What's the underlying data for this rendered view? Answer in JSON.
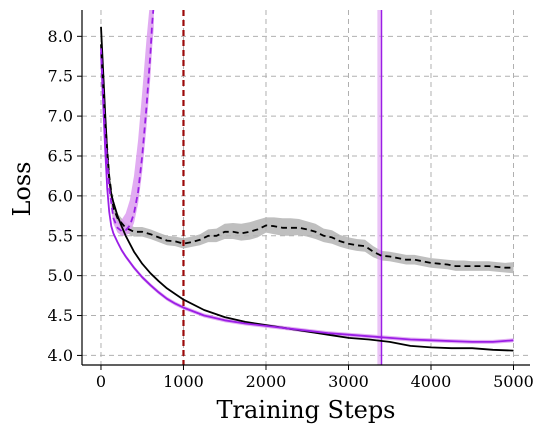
{
  "chart_data": {
    "type": "line",
    "title": "",
    "xlabel": "Training Steps",
    "ylabel": "Loss",
    "xlim": [
      -230,
      5200
    ],
    "ylim": [
      3.88,
      8.33
    ],
    "xticks": [
      0,
      1000,
      2000,
      3000,
      4000,
      5000
    ],
    "xtick_labels": [
      "0",
      "1000",
      "2000",
      "3000",
      "4000",
      "5000"
    ],
    "yticks": [
      4.0,
      4.5,
      5.0,
      5.5,
      6.0,
      6.5,
      7.0,
      7.5,
      8.0
    ],
    "ytick_labels": [
      "4.0",
      "4.5",
      "5.0",
      "5.5",
      "6.0",
      "6.5",
      "7.0",
      "7.5",
      "8.0"
    ],
    "grid": true,
    "grid_style": "dashed",
    "legend": "none",
    "colors": {
      "black": "#000000",
      "purple": "#9b1ee6",
      "purple_band": "#dc9cf0",
      "gray_band": "#b4b4b4",
      "red_vline": "#9b0a0a",
      "grid": "#b0b0b0"
    },
    "series": [
      {
        "style": "solid",
        "color": "#000000",
        "x": [
          0,
          25,
          50,
          75,
          100,
          125,
          150,
          200,
          250,
          300,
          400,
          500,
          600,
          700,
          800,
          900,
          1000,
          1250,
          1500,
          1750,
          2000,
          2250,
          2500,
          2750,
          3000,
          3250,
          3500,
          3750,
          4000,
          4250,
          4500,
          4750,
          5000
        ],
        "y": [
          8.12,
          7.6,
          7.05,
          6.55,
          6.2,
          6.02,
          5.92,
          5.75,
          5.62,
          5.5,
          5.3,
          5.15,
          5.03,
          4.93,
          4.84,
          4.77,
          4.7,
          4.57,
          4.48,
          4.42,
          4.38,
          4.34,
          4.3,
          4.26,
          4.22,
          4.2,
          4.17,
          4.12,
          4.1,
          4.09,
          4.09,
          4.07,
          4.06
        ]
      },
      {
        "style": "solid",
        "color": "#9b1ee6",
        "band": 0.025,
        "x": [
          0,
          25,
          50,
          75,
          100,
          125,
          150,
          200,
          250,
          300,
          400,
          500,
          600,
          700,
          800,
          900,
          1000,
          1250,
          1500,
          1750,
          2000,
          2250,
          2500,
          2750,
          3000,
          3250,
          3500,
          3750,
          4000,
          4250,
          4500,
          4750,
          5000
        ],
        "y": [
          7.8,
          7.2,
          6.6,
          6.1,
          5.8,
          5.62,
          5.53,
          5.42,
          5.32,
          5.24,
          5.1,
          4.98,
          4.88,
          4.79,
          4.71,
          4.65,
          4.6,
          4.5,
          4.44,
          4.4,
          4.37,
          4.34,
          4.31,
          4.28,
          4.26,
          4.24,
          4.22,
          4.2,
          4.19,
          4.18,
          4.17,
          4.17,
          4.19
        ]
      },
      {
        "style": "dashed",
        "color": "#000000",
        "band_color": "#b4b4b4",
        "x": [
          0,
          50,
          100,
          150,
          200,
          300,
          400,
          500,
          600,
          700,
          800,
          900,
          1000,
          1100,
          1200,
          1300,
          1400,
          1500,
          1600,
          1700,
          1800,
          1900,
          2000,
          2100,
          2200,
          2300,
          2400,
          2500,
          2600,
          2700,
          2800,
          2900,
          3000,
          3100,
          3200,
          3300,
          3400,
          3500,
          3600,
          3700,
          3800,
          3900,
          4000,
          4100,
          4200,
          4300,
          4400,
          4500,
          4600,
          4700,
          4800,
          4900,
          5000
        ],
        "y": [
          7.9,
          6.95,
          6.25,
          5.85,
          5.72,
          5.6,
          5.55,
          5.55,
          5.52,
          5.48,
          5.44,
          5.43,
          5.4,
          5.42,
          5.45,
          5.5,
          5.5,
          5.55,
          5.55,
          5.53,
          5.55,
          5.58,
          5.63,
          5.62,
          5.6,
          5.6,
          5.6,
          5.58,
          5.55,
          5.5,
          5.48,
          5.43,
          5.4,
          5.38,
          5.37,
          5.3,
          5.25,
          5.24,
          5.22,
          5.2,
          5.2,
          5.18,
          5.16,
          5.15,
          5.14,
          5.12,
          5.12,
          5.12,
          5.12,
          5.12,
          5.11,
          5.1,
          5.1
        ],
        "band_lo": [
          7.85,
          6.9,
          6.18,
          5.78,
          5.66,
          5.54,
          5.49,
          5.49,
          5.46,
          5.42,
          5.38,
          5.37,
          5.34,
          5.36,
          5.38,
          5.42,
          5.42,
          5.46,
          5.46,
          5.44,
          5.45,
          5.48,
          5.54,
          5.52,
          5.5,
          5.5,
          5.51,
          5.49,
          5.46,
          5.42,
          5.4,
          5.36,
          5.33,
          5.31,
          5.3,
          5.23,
          5.19,
          5.18,
          5.16,
          5.14,
          5.14,
          5.12,
          5.1,
          5.09,
          5.08,
          5.06,
          5.06,
          5.06,
          5.06,
          5.06,
          5.05,
          5.04,
          5.03
        ],
        "band_hi": [
          7.95,
          7.0,
          6.32,
          5.92,
          5.78,
          5.66,
          5.61,
          5.61,
          5.58,
          5.54,
          5.5,
          5.49,
          5.47,
          5.49,
          5.52,
          5.58,
          5.59,
          5.65,
          5.66,
          5.65,
          5.67,
          5.7,
          5.73,
          5.73,
          5.72,
          5.72,
          5.71,
          5.68,
          5.65,
          5.59,
          5.57,
          5.51,
          5.48,
          5.46,
          5.45,
          5.37,
          5.31,
          5.3,
          5.28,
          5.26,
          5.26,
          5.24,
          5.22,
          5.21,
          5.2,
          5.19,
          5.19,
          5.18,
          5.18,
          5.18,
          5.17,
          5.16,
          5.17
        ]
      },
      {
        "style": "dashed",
        "color": "#9b1ee6",
        "band_color": "#dc9cf0",
        "x": [
          0,
          50,
          100,
          150,
          200,
          250,
          300,
          350,
          400,
          450,
          500,
          550,
          600,
          620,
          640
        ],
        "y": [
          7.85,
          6.8,
          6.1,
          5.72,
          5.6,
          5.56,
          5.57,
          5.63,
          5.78,
          6.05,
          6.5,
          7.1,
          7.8,
          8.15,
          8.4
        ],
        "band_lo": [
          7.8,
          6.75,
          6.02,
          5.65,
          5.54,
          5.5,
          5.5,
          5.54,
          5.66,
          5.9,
          6.3,
          6.85,
          7.5,
          7.85,
          8.1
        ],
        "band_hi": [
          7.9,
          6.85,
          6.18,
          5.8,
          5.68,
          5.7,
          5.78,
          5.95,
          6.25,
          6.7,
          7.3,
          7.95,
          8.5,
          8.6,
          8.6
        ]
      }
    ],
    "vlines": [
      {
        "x": 1000,
        "color": "#9b0a0a",
        "style": "dashed"
      },
      {
        "x": 3400,
        "color": "#9b1ee6",
        "style": "solid",
        "band": [
          3350,
          3410
        ]
      }
    ]
  }
}
